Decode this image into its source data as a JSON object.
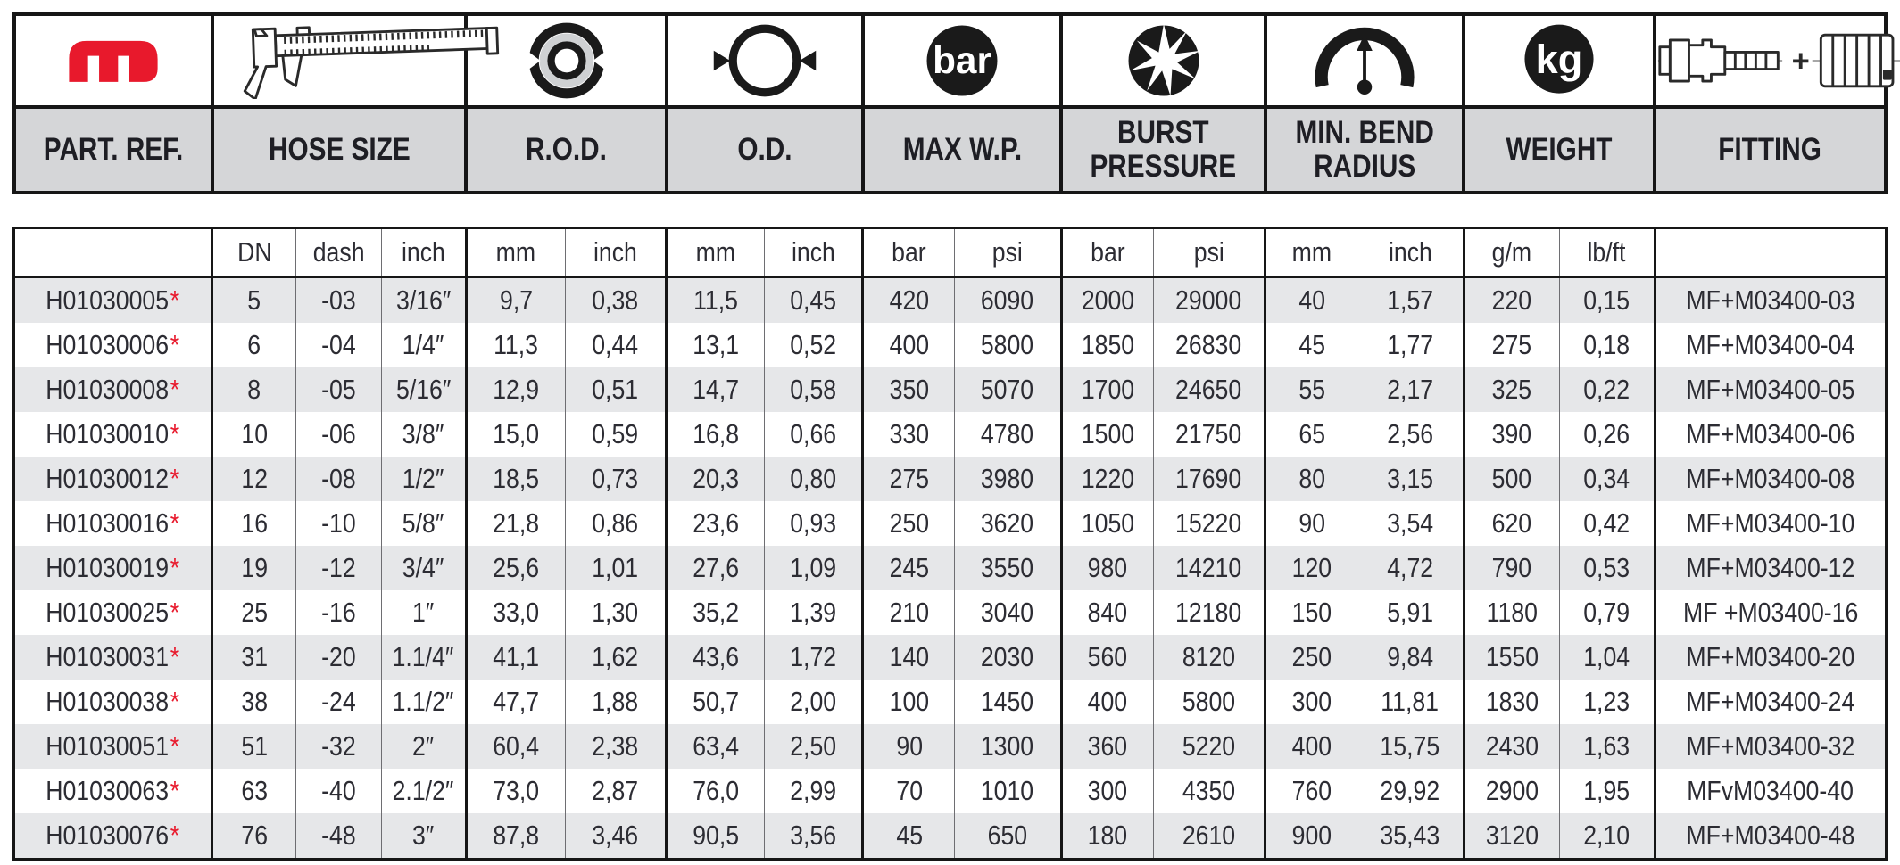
{
  "header": {
    "columns": [
      {
        "label": "PART. REF.",
        "icon": "manuli-logo"
      },
      {
        "label": "HOSE SIZE",
        "icon": "caliper-icon"
      },
      {
        "label": "R.O.D.",
        "icon": "rod-rings-icon"
      },
      {
        "label": "O.D.",
        "icon": "od-circle-icon"
      },
      {
        "label": "MAX W.P.",
        "icon": "bar-pressure-icon"
      },
      {
        "label": "BURST PRESSURE",
        "icon": "burst-star-icon"
      },
      {
        "label": "MIN. BEND RADIUS",
        "icon": "bend-radius-icon"
      },
      {
        "label": "WEIGHT",
        "icon": "kg-icon"
      },
      {
        "label": "FITTING",
        "icon": "fitting-ferrule-icon"
      }
    ]
  },
  "table": {
    "unit_row": [
      "",
      "DN",
      "dash",
      "inch",
      "mm",
      "inch",
      "mm",
      "inch",
      "bar",
      "psi",
      "bar",
      "psi",
      "mm",
      "inch",
      "g/m",
      "lb/ft",
      ""
    ],
    "rows": [
      {
        "part": "H01030005",
        "star": "*",
        "values": [
          "5",
          "-03",
          "3/16″",
          "9,7",
          "0,38",
          "11,5",
          "0,45",
          "420",
          "6090",
          "2000",
          "29000",
          "40",
          "1,57",
          "220",
          "0,15"
        ],
        "fitting": "MF+M03400-03"
      },
      {
        "part": "H01030006",
        "star": "*",
        "values": [
          "6",
          "-04",
          "1/4″",
          "11,3",
          "0,44",
          "13,1",
          "0,52",
          "400",
          "5800",
          "1850",
          "26830",
          "45",
          "1,77",
          "275",
          "0,18"
        ],
        "fitting": "MF+M03400-04"
      },
      {
        "part": "H01030008",
        "star": "*",
        "values": [
          "8",
          "-05",
          "5/16″",
          "12,9",
          "0,51",
          "14,7",
          "0,58",
          "350",
          "5070",
          "1700",
          "24650",
          "55",
          "2,17",
          "325",
          "0,22"
        ],
        "fitting": "MF+M03400-05"
      },
      {
        "part": "H01030010",
        "star": "*",
        "values": [
          "10",
          "-06",
          "3/8″",
          "15,0",
          "0,59",
          "16,8",
          "0,66",
          "330",
          "4780",
          "1500",
          "21750",
          "65",
          "2,56",
          "390",
          "0,26"
        ],
        "fitting": "MF+M03400-06"
      },
      {
        "part": "H01030012",
        "star": "*",
        "values": [
          "12",
          "-08",
          "1/2″",
          "18,5",
          "0,73",
          "20,3",
          "0,80",
          "275",
          "3980",
          "1220",
          "17690",
          "80",
          "3,15",
          "500",
          "0,34"
        ],
        "fitting": "MF+M03400-08"
      },
      {
        "part": "H01030016",
        "star": "*",
        "values": [
          "16",
          "-10",
          "5/8″",
          "21,8",
          "0,86",
          "23,6",
          "0,93",
          "250",
          "3620",
          "1050",
          "15220",
          "90",
          "3,54",
          "620",
          "0,42"
        ],
        "fitting": "MF+M03400-10"
      },
      {
        "part": "H01030019",
        "star": "*",
        "values": [
          "19",
          "-12",
          "3/4″",
          "25,6",
          "1,01",
          "27,6",
          "1,09",
          "245",
          "3550",
          "980",
          "14210",
          "120",
          "4,72",
          "790",
          "0,53"
        ],
        "fitting": "MF+M03400-12"
      },
      {
        "part": "H01030025",
        "star": "*",
        "values": [
          "25",
          "-16",
          "1″",
          "33,0",
          "1,30",
          "35,2",
          "1,39",
          "210",
          "3040",
          "840",
          "12180",
          "150",
          "5,91",
          "1180",
          "0,79"
        ],
        "fitting": "MF +M03400-16"
      },
      {
        "part": "H01030031",
        "star": "*",
        "values": [
          "31",
          "-20",
          "1.1/4″",
          "41,1",
          "1,62",
          "43,6",
          "1,72",
          "140",
          "2030",
          "560",
          "8120",
          "250",
          "9,84",
          "1550",
          "1,04"
        ],
        "fitting": "MF+M03400-20"
      },
      {
        "part": "H01030038",
        "star": "*",
        "values": [
          "38",
          "-24",
          "1.1/2″",
          "47,7",
          "1,88",
          "50,7",
          "2,00",
          "100",
          "1450",
          "400",
          "5800",
          "300",
          "11,81",
          "1830",
          "1,23"
        ],
        "fitting": "MF+M03400-24"
      },
      {
        "part": "H01030051",
        "star": "*",
        "values": [
          "51",
          "-32",
          "2″",
          "60,4",
          "2,38",
          "63,4",
          "2,50",
          "90",
          "1300",
          "360",
          "5220",
          "400",
          "15,75",
          "2430",
          "1,63"
        ],
        "fitting": "MF+M03400-32"
      },
      {
        "part": "H01030063",
        "star": "*",
        "values": [
          "63",
          "-40",
          "2.1/2″",
          "73,0",
          "2,87",
          "76,0",
          "2,99",
          "70",
          "1010",
          "300",
          "4350",
          "760",
          "29,92",
          "2900",
          "1,95"
        ],
        "fitting": "MFvM03400-40"
      },
      {
        "part": "H01030076",
        "star": "*",
        "values": [
          "76",
          "-48",
          "3″",
          "87,8",
          "3,46",
          "90,5",
          "3,56",
          "45",
          "650",
          "180",
          "2610",
          "900",
          "35,43",
          "3120",
          "2,10"
        ],
        "fitting": "MF+M03400-48"
      }
    ]
  },
  "icon_labels": {
    "bar_badge": "bar",
    "kg_badge": "kg",
    "fitting_plus": "+"
  },
  "colors": {
    "accent_red": "#e8192c",
    "header_band_gray": "#d5d6d8",
    "row_stripe_gray": "#e6e7e9",
    "border_black": "#161616"
  }
}
